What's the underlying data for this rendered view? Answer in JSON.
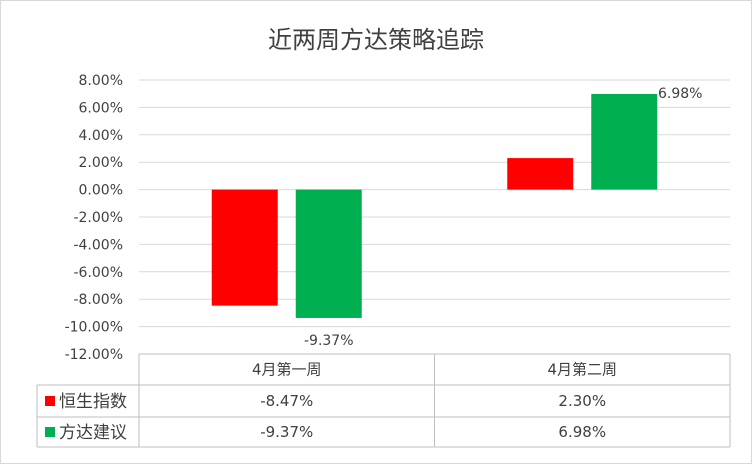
{
  "chart_data": {
    "type": "bar",
    "title": "近两周方达策略追踪",
    "categories": [
      "4月第一周",
      "4月第二周"
    ],
    "series": [
      {
        "name": "恒生指数",
        "values": [
          -8.47,
          2.3
        ],
        "value_labels": [
          "-8.47%",
          "2.30%"
        ],
        "color": "#ff0000"
      },
      {
        "name": "方达建议",
        "values": [
          -9.37,
          6.98
        ],
        "value_labels": [
          "-9.37%",
          "6.98%"
        ],
        "color": "#00b050"
      }
    ],
    "data_labels": [
      {
        "series": 1,
        "category": 1,
        "text": "6.98%"
      },
      {
        "series": 1,
        "category": 0,
        "text": "-9.37%"
      }
    ],
    "y_ticks": [
      "8.00%",
      "6.00%",
      "4.00%",
      "2.00%",
      "0.00%",
      "-2.00%",
      "-4.00%",
      "-6.00%",
      "-8.00%",
      "-10.00%",
      "-12.00%"
    ],
    "ylim": [
      -12,
      8
    ],
    "unit": "%",
    "legend": "data-table",
    "grid": true,
    "colors": {
      "grid": "#d9d9d9",
      "axis": "#bfbfbf",
      "text": "#404040"
    }
  }
}
